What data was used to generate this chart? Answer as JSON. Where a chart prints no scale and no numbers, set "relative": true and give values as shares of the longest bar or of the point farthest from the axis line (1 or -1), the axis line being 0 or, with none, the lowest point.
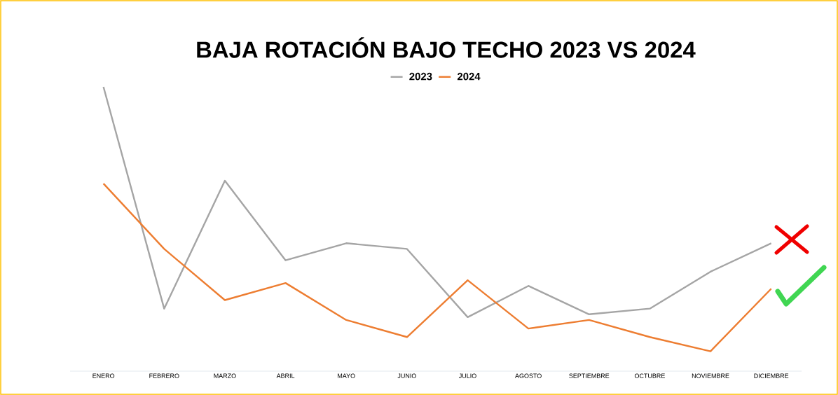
{
  "chart_data": {
    "type": "line",
    "title": "BAJA ROTACIÓN BAJO TECHO 2023 VS 2024",
    "relative": true,
    "categories": [
      "ENERO",
      "FEBRERO",
      "MARZO",
      "ABRIL",
      "MAYO",
      "JUNIO",
      "JULIO",
      "AGOSTO",
      "SEPTIEMBRE",
      "OCTUBRE",
      "NOVIEMBRE",
      "DICIEMBRE"
    ],
    "series": [
      {
        "name": "2023",
        "color": "#a5a5a5",
        "values": [
          1,
          0.22,
          0.67,
          0.39,
          0.45,
          0.43,
          0.19,
          0.3,
          0.2,
          0.22,
          0.35,
          0.45
        ]
      },
      {
        "name": "2024",
        "color": "#ed7d31",
        "values": [
          0.66,
          0.43,
          0.25,
          0.31,
          0.18,
          0.12,
          0.32,
          0.15,
          0.18,
          0.12,
          0.07,
          0.29
        ]
      }
    ],
    "legend": "top",
    "grid": false,
    "marker": "none",
    "line_style": "solid"
  }
}
